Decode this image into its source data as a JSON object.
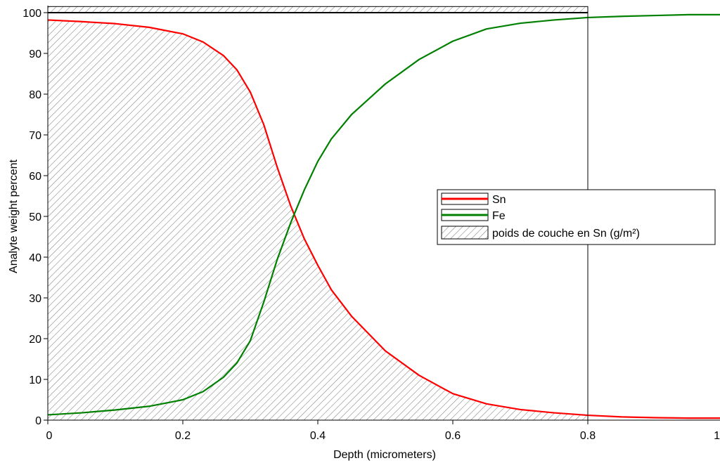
{
  "chart_data": {
    "type": "line",
    "title": "",
    "xlabel": "Depth (micrometers)",
    "ylabel": "Analyte weight percent",
    "xlim": [
      0,
      1
    ],
    "ylim": [
      0,
      100
    ],
    "x_ticks": [
      0,
      0.2,
      0.4,
      0.6,
      0.8,
      1
    ],
    "x_tick_labels": [
      "0",
      "0.2",
      "0.4",
      "0.6",
      "0.8",
      "1"
    ],
    "y_ticks": [
      0,
      10,
      20,
      30,
      40,
      50,
      60,
      70,
      80,
      90,
      100
    ],
    "y_tick_labels": [
      "0",
      "10",
      "20",
      "30",
      "40",
      "50",
      "60",
      "70",
      "80",
      "90",
      "100"
    ],
    "grid": false,
    "legend_position": "right",
    "series": [
      {
        "name": "Sn",
        "color": "#ff0000",
        "x": [
          0,
          0.05,
          0.1,
          0.15,
          0.2,
          0.23,
          0.26,
          0.28,
          0.3,
          0.32,
          0.34,
          0.36,
          0.38,
          0.4,
          0.42,
          0.45,
          0.5,
          0.55,
          0.6,
          0.65,
          0.7,
          0.75,
          0.8,
          0.85,
          0.9,
          0.95,
          1.0
        ],
        "y": [
          98.2,
          97.8,
          97.3,
          96.4,
          94.8,
          92.8,
          89.5,
          86.0,
          80.5,
          72.5,
          62.0,
          52.5,
          44.5,
          38.0,
          32.0,
          25.5,
          17.0,
          11.0,
          6.5,
          4.0,
          2.6,
          1.8,
          1.2,
          0.8,
          0.6,
          0.5,
          0.5
        ]
      },
      {
        "name": "Fe",
        "color": "#008000",
        "x": [
          0,
          0.05,
          0.1,
          0.15,
          0.2,
          0.23,
          0.26,
          0.28,
          0.3,
          0.32,
          0.34,
          0.36,
          0.38,
          0.4,
          0.42,
          0.45,
          0.5,
          0.55,
          0.6,
          0.65,
          0.7,
          0.75,
          0.8,
          0.85,
          0.9,
          0.95,
          1.0
        ],
        "y": [
          1.3,
          1.8,
          2.5,
          3.4,
          5.0,
          7.0,
          10.5,
          14.0,
          19.5,
          29.0,
          39.5,
          48.5,
          56.5,
          63.5,
          69.0,
          75.0,
          82.5,
          88.5,
          93.0,
          96.0,
          97.4,
          98.2,
          98.8,
          99.1,
          99.3,
          99.5,
          99.5
        ]
      }
    ],
    "shaded_area": {
      "name": "poids de couche en Sn (g/m²)",
      "under_series": "Sn",
      "x_range": [
        0,
        0.8
      ],
      "top_y": 100,
      "top_band_y": [
        100,
        101.5
      ],
      "fill": "hatched",
      "color": "#888888"
    }
  }
}
